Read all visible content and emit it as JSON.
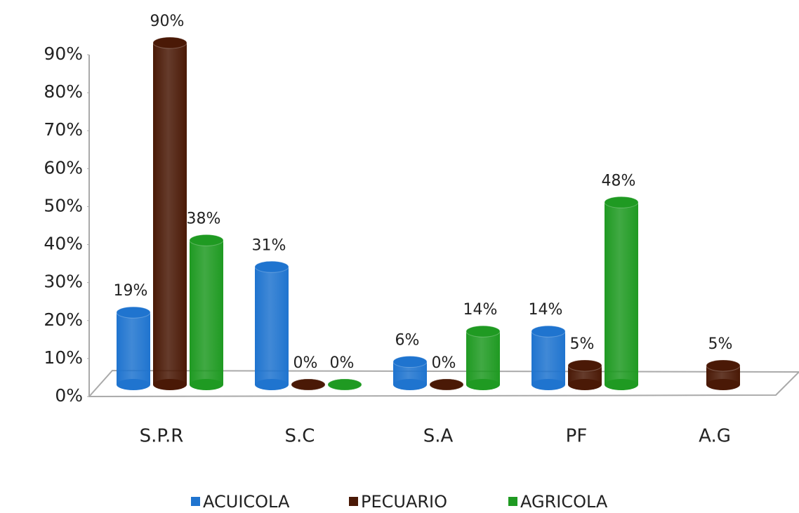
{
  "chart_data": {
    "type": "bar3d",
    "categories": [
      "S.P.R",
      "S.C",
      "S.A",
      "PF",
      "A.G"
    ],
    "series": [
      {
        "name": "ACUICOLA",
        "color": "#1f74cf",
        "values": [
          19,
          31,
          6,
          14,
          null
        ],
        "value_labels": [
          "19%",
          "31%",
          "6%",
          "14%",
          null
        ]
      },
      {
        "name": "PECUARIO",
        "color": "#4a1906",
        "values": [
          90,
          0,
          0,
          5,
          5
        ],
        "value_labels": [
          "90%",
          "0%",
          "0%",
          "5%",
          "5%"
        ]
      },
      {
        "name": "AGRICOLA",
        "color": "#1f9a22",
        "values": [
          38,
          0,
          14,
          48,
          null
        ],
        "value_labels": [
          "38%",
          "0%",
          "14%",
          "48%",
          null
        ]
      }
    ],
    "ylim": [
      0,
      90
    ],
    "yticks": [
      {
        "value": 0,
        "label": "0%"
      },
      {
        "value": 10,
        "label": "10%"
      },
      {
        "value": 20,
        "label": "20%"
      },
      {
        "value": 30,
        "label": "30%"
      },
      {
        "value": 40,
        "label": "40%"
      },
      {
        "value": 50,
        "label": "50%"
      },
      {
        "value": 60,
        "label": "60%"
      },
      {
        "value": 70,
        "label": "70%"
      },
      {
        "value": 80,
        "label": "80%"
      },
      {
        "value": 90,
        "label": "90%"
      }
    ],
    "legend": "bottom"
  }
}
